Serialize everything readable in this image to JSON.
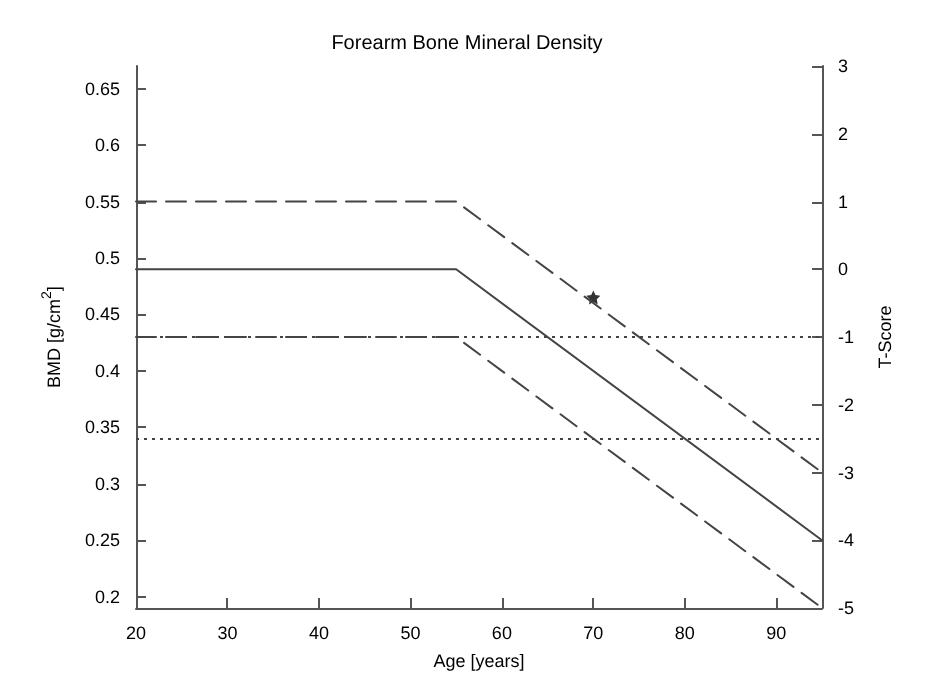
{
  "chart_data": {
    "type": "line",
    "title": "Forearm Bone Mineral Density",
    "xlabel": "Age [years]",
    "ylabel": "BMD [g/cm$^{2}$]",
    "y2label": "T-Score",
    "series": [
      {
        "x": [
          20,
          55,
          95
        ],
        "values": [
          0.55,
          0.55,
          0.31
        ],
        "color": "#444444",
        "line_style": "dashed"
      },
      {
        "x": [
          20,
          55,
          95
        ],
        "values": [
          0.49,
          0.49,
          0.25
        ],
        "color": "#444444",
        "line_style": "solid"
      },
      {
        "x": [
          20,
          55,
          95
        ],
        "values": [
          0.43,
          0.43,
          0.19
        ],
        "color": "#444444",
        "line_style": "dashed"
      },
      {
        "type": "scatter",
        "x": [
          70
        ],
        "values": [
          0.465
        ],
        "color": "#000000",
        "marker": "star"
      }
    ],
    "xlim": [
      20,
      95
    ],
    "xticks": [
      20,
      30,
      40,
      50,
      60,
      70,
      80,
      90
    ],
    "ylim": [
      0.19,
      0.67
    ],
    "yticks": [
      0.2,
      0.25,
      0.3,
      0.35,
      0.4,
      0.45,
      0.5,
      0.55,
      0.6,
      0.65
    ],
    "y2lim": [
      -5,
      3
    ],
    "y2ticks": [
      -5,
      -4,
      -3,
      -2,
      -1,
      0,
      1,
      2,
      3
    ],
    "ref_lines": [
      {
        "axis": "y",
        "value": 0.43,
        "color": "#444444",
        "line_style": "dotted"
      },
      {
        "axis": "y",
        "value": 0.34,
        "color": "#444444",
        "line_style": "dotted"
      }
    ],
    "marker": "none",
    "grid": false
  }
}
